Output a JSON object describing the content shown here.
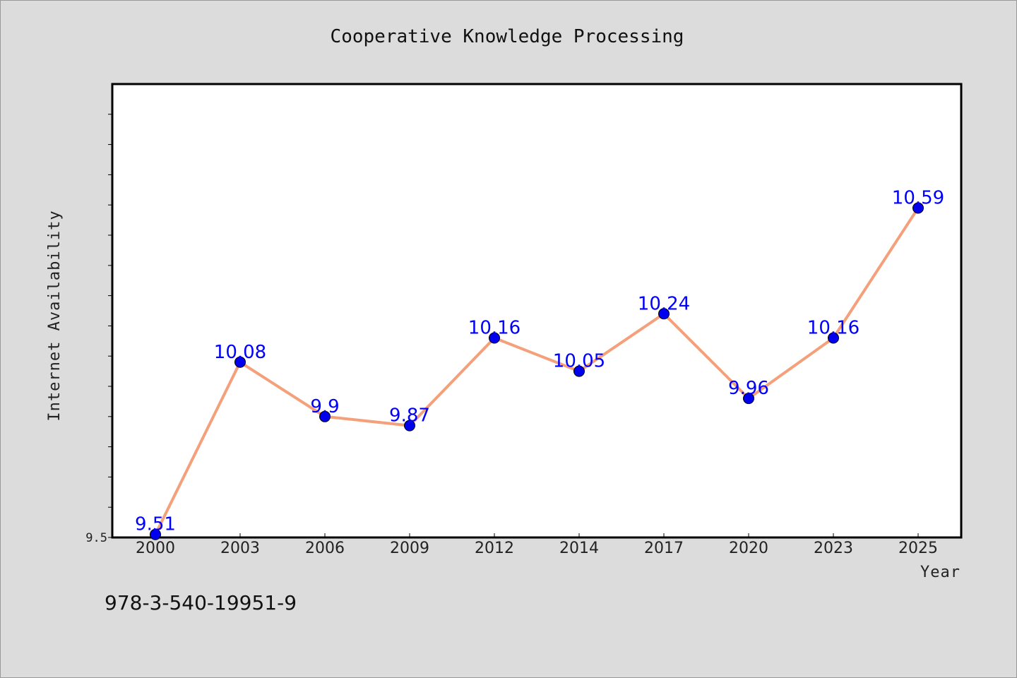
{
  "chart_data": {
    "type": "line",
    "title": "Cooperative Knowledge Processing",
    "xlabel": "Year",
    "ylabel": "Internet Availability",
    "categories": [
      "2000",
      "2003",
      "2006",
      "2009",
      "2012",
      "2014",
      "2017",
      "2020",
      "2023",
      "2025"
    ],
    "series": [
      {
        "values": [
          9.51,
          10.08,
          9.9,
          9.87,
          10.16,
          10.05,
          10.24,
          9.96,
          10.16,
          10.59
        ]
      }
    ],
    "data_labels": [
      "9.51",
      "10.08",
      "9.9",
      "9.87",
      "10.16",
      "10.05",
      "10.24",
      "9.96",
      "10.16",
      "10.59"
    ],
    "ylim": [
      9.5,
      11.0
    ],
    "y_tick_labels": [
      "9.5"
    ],
    "grid": false,
    "line_color": "#f4a07a",
    "marker_color": "#0000ee",
    "label_color": "#0000ff"
  },
  "footer": {
    "isbn": "978-3-540-19951-9"
  }
}
